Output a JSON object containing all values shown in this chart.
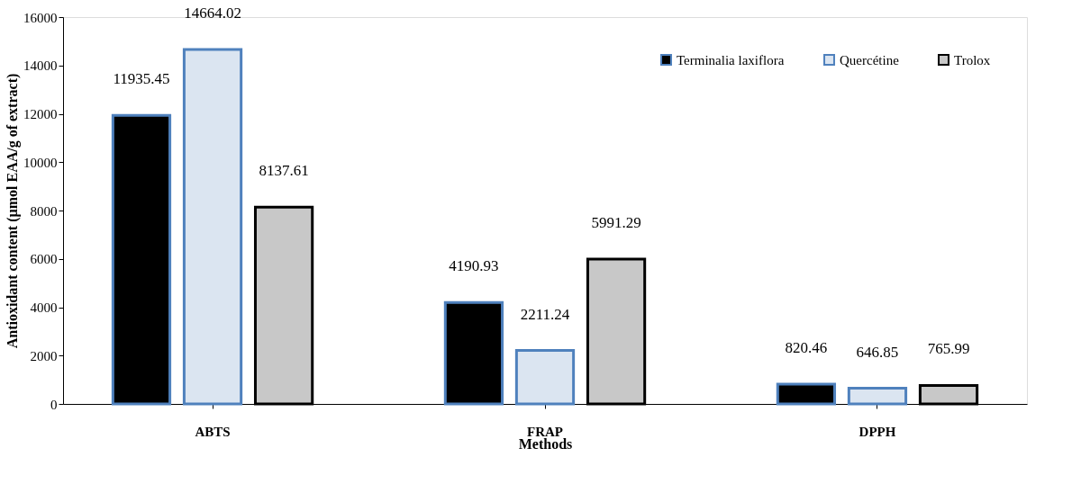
{
  "chart_data": {
    "type": "bar",
    "xlabel": "Methods",
    "ylabel": "Antioxidant content (µmol EAA/g of extract)",
    "categories": [
      "ABTS",
      "FRAP",
      "DPPH"
    ],
    "series": [
      {
        "name": "Terminalia laxiflora",
        "color": "#000000",
        "values": [
          11935.45,
          4190.93,
          820.46
        ]
      },
      {
        "name": "Quercétine",
        "color": "#dbe5f1",
        "values": [
          14664.02,
          2211.24,
          646.85
        ]
      },
      {
        "name": "Trolox",
        "color": "#c8c8c8",
        "values": [
          8137.61,
          5991.29,
          765.99
        ]
      }
    ],
    "ylim": [
      0,
      16000
    ],
    "yticks": [
      0,
      2000,
      4000,
      6000,
      8000,
      10000,
      12000,
      14000,
      16000
    ],
    "grid": false,
    "legend": "top right",
    "data_labels": true
  }
}
